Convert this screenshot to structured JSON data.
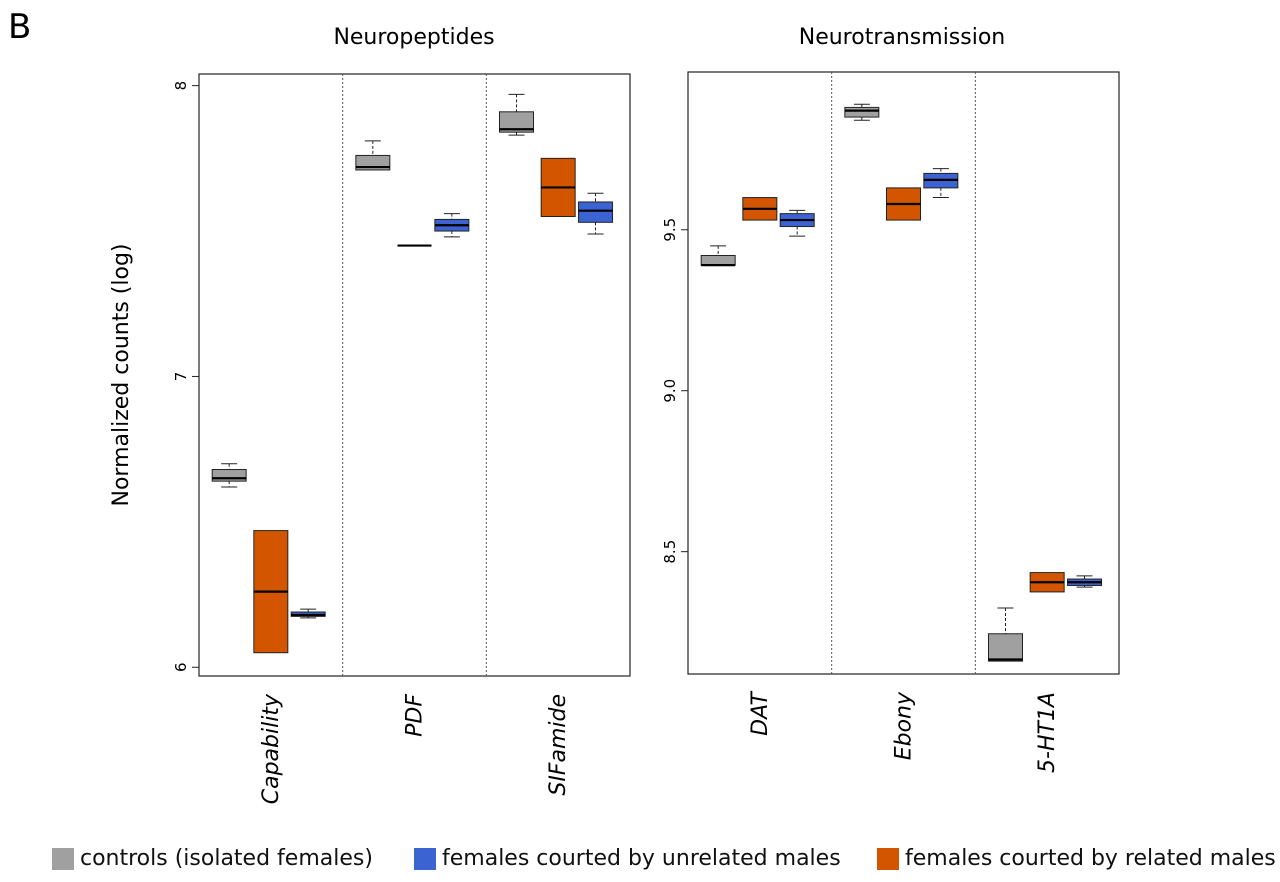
{
  "panel_label": "B",
  "legend": [
    {
      "key": "controls",
      "label": "controls (isolated females)",
      "color": "#A0A0A0"
    },
    {
      "key": "unrelated",
      "label": "females courted by unrelated males",
      "color": "#3B63D1"
    },
    {
      "key": "related",
      "label": "females courted by related males",
      "color": "#D45500"
    }
  ],
  "chart_data": [
    {
      "type": "box",
      "title": "Neuropeptides",
      "ylabel": "Normalized counts (log)",
      "ylim": [
        5.97,
        8.04
      ],
      "yticks": [
        "6",
        "7",
        "8"
      ],
      "categories": [
        "Capability",
        "PDF",
        "SIFamide"
      ],
      "series_order": [
        "controls",
        "related",
        "unrelated"
      ],
      "boxes": [
        {
          "category": "Capability",
          "group": "controls",
          "min": 6.62,
          "q1": 6.64,
          "median": 6.65,
          "q3": 6.68,
          "max": 6.7
        },
        {
          "category": "Capability",
          "group": "related",
          "min": 6.05,
          "q1": 6.05,
          "median": 6.26,
          "q3": 6.47,
          "max": 6.47
        },
        {
          "category": "Capability",
          "group": "unrelated",
          "min": 6.17,
          "q1": 6.175,
          "median": 6.18,
          "q3": 6.19,
          "max": 6.2
        },
        {
          "category": "PDF",
          "group": "controls",
          "min": 7.71,
          "q1": 7.71,
          "median": 7.72,
          "q3": 7.76,
          "max": 7.81
        },
        {
          "category": "PDF",
          "group": "related",
          "min": 7.45,
          "q1": 7.45,
          "median": 7.45,
          "q3": 7.45,
          "max": 7.45
        },
        {
          "category": "PDF",
          "group": "unrelated",
          "min": 7.48,
          "q1": 7.5,
          "median": 7.52,
          "q3": 7.54,
          "max": 7.56
        },
        {
          "category": "SIFamide",
          "group": "controls",
          "min": 7.83,
          "q1": 7.84,
          "median": 7.85,
          "q3": 7.91,
          "max": 7.97
        },
        {
          "category": "SIFamide",
          "group": "related",
          "min": 7.55,
          "q1": 7.55,
          "median": 7.65,
          "q3": 7.75,
          "max": 7.75
        },
        {
          "category": "SIFamide",
          "group": "unrelated",
          "min": 7.49,
          "q1": 7.53,
          "median": 7.57,
          "q3": 7.6,
          "max": 7.63
        }
      ]
    },
    {
      "type": "box",
      "title": "Neurotransmission",
      "ylabel": "",
      "ylim": [
        8.12,
        9.99
      ],
      "yticks": [
        "8.5",
        "9.0",
        "9.5"
      ],
      "categories": [
        "DAT",
        "Ebony",
        "5-HT1A"
      ],
      "series_order": [
        "controls",
        "related",
        "unrelated"
      ],
      "boxes": [
        {
          "category": "DAT",
          "group": "controls",
          "min": 9.39,
          "q1": 9.39,
          "median": 9.39,
          "q3": 9.42,
          "max": 9.45
        },
        {
          "category": "DAT",
          "group": "related",
          "min": 9.53,
          "q1": 9.53,
          "median": 9.565,
          "q3": 9.6,
          "max": 9.6
        },
        {
          "category": "DAT",
          "group": "unrelated",
          "min": 9.48,
          "q1": 9.51,
          "median": 9.53,
          "q3": 9.55,
          "max": 9.56
        },
        {
          "category": "Ebony",
          "group": "controls",
          "min": 9.84,
          "q1": 9.85,
          "median": 9.87,
          "q3": 9.88,
          "max": 9.89
        },
        {
          "category": "Ebony",
          "group": "related",
          "min": 9.53,
          "q1": 9.53,
          "median": 9.58,
          "q3": 9.63,
          "max": 9.63
        },
        {
          "category": "Ebony",
          "group": "unrelated",
          "min": 9.6,
          "q1": 9.63,
          "median": 9.655,
          "q3": 9.675,
          "max": 9.69
        },
        {
          "category": "5-HT1A",
          "group": "controls",
          "min": 8.16,
          "q1": 8.16,
          "median": 8.165,
          "q3": 8.245,
          "max": 8.325
        },
        {
          "category": "5-HT1A",
          "group": "related",
          "min": 8.375,
          "q1": 8.375,
          "median": 8.405,
          "q3": 8.435,
          "max": 8.435
        },
        {
          "category": "5-HT1A",
          "group": "unrelated",
          "min": 8.39,
          "q1": 8.395,
          "median": 8.405,
          "q3": 8.415,
          "max": 8.425
        }
      ]
    }
  ]
}
